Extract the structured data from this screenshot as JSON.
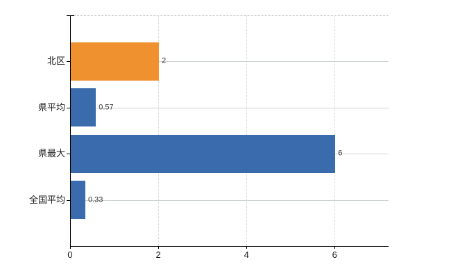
{
  "chart_data": {
    "type": "bar",
    "orientation": "horizontal",
    "title": "",
    "xlabel": "",
    "ylabel": "",
    "categories": [
      "北区",
      "県平均",
      "県最大",
      "全国平均"
    ],
    "values": [
      2,
      0.57,
      6,
      0.33
    ],
    "value_labels": [
      "2",
      "0.57",
      "6",
      "0.33"
    ],
    "bar_colors": [
      "#EF912F",
      "#3A6BAD",
      "#3A6BAD",
      "#3A6BAD"
    ],
    "highlight_category": "北区",
    "x_ticks": [
      0,
      2,
      4,
      6
    ],
    "x_tick_labels": [
      "0",
      "2",
      "4",
      "6"
    ],
    "xlim": [
      0,
      7.22
    ],
    "grid": {
      "horizontal": true,
      "vertical": true
    },
    "legend": "none"
  },
  "colors": {
    "bar_blue": "#3A6BAD",
    "bar_orange": "#EF912F",
    "horizontal_gridline": "#CDD4CD",
    "vertical_gridline": "#DADADA",
    "plot_top_border": "#C9C9C9",
    "axis": "#000000",
    "label_text": "#1A1A1A",
    "value_text": "#333333",
    "background": "#FFFFFF"
  }
}
